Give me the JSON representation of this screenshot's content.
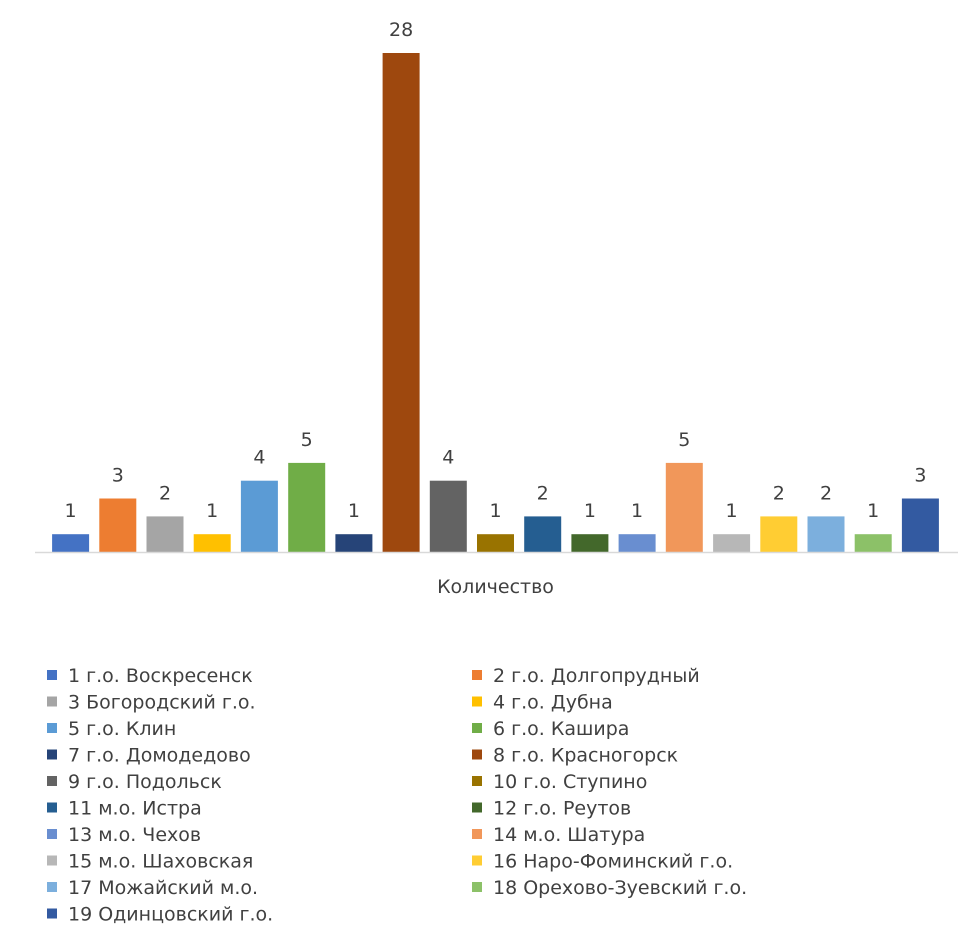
{
  "chart_data": {
    "type": "bar",
    "title": "",
    "xlabel": "",
    "ylabel": "",
    "categories": [
      "Количество"
    ],
    "ylim": [
      0,
      28
    ],
    "grid": false,
    "legend_position": "bottom",
    "data_labels": true,
    "series": [
      {
        "name": "1 г.о. Воскресенск",
        "values": [
          1
        ],
        "color": "#4472C4"
      },
      {
        "name": "2 г.о. Долгопрудный",
        "values": [
          3
        ],
        "color": "#ED7D31"
      },
      {
        "name": "3 Богородский г.о.",
        "values": [
          2
        ],
        "color": "#A5A5A5"
      },
      {
        "name": "4 г.о. Дубна",
        "values": [
          1
        ],
        "color": "#FFC000"
      },
      {
        "name": "5 г.о. Клин",
        "values": [
          4
        ],
        "color": "#5B9BD5"
      },
      {
        "name": "6 г.о. Кашира",
        "values": [
          5
        ],
        "color": "#70AD47"
      },
      {
        "name": "7 г.о. Домодедово",
        "values": [
          1
        ],
        "color": "#264478"
      },
      {
        "name": "8 г.о. Красногорск",
        "values": [
          28
        ],
        "color": "#9E480E"
      },
      {
        "name": "9 г.о. Подольск",
        "values": [
          4
        ],
        "color": "#636363"
      },
      {
        "name": "10 г.о. Ступино",
        "values": [
          1
        ],
        "color": "#997300"
      },
      {
        "name": "11 м.о. Истра",
        "values": [
          2
        ],
        "color": "#255E91"
      },
      {
        "name": "12 г.о. Реутов",
        "values": [
          1
        ],
        "color": "#43682B"
      },
      {
        "name": "13 м.о. Чехов",
        "values": [
          1
        ],
        "color": "#698ED0"
      },
      {
        "name": "14 м.о. Шатура",
        "values": [
          5
        ],
        "color": "#F1975A"
      },
      {
        "name": "15 м.о. Шаховская",
        "values": [
          1
        ],
        "color": "#B7B7B7"
      },
      {
        "name": "16 Наро-Фоминский г.о.",
        "values": [
          2
        ],
        "color": "#FFCD33"
      },
      {
        "name": "17 Можайский м.о.",
        "values": [
          2
        ],
        "color": "#7CAFDD"
      },
      {
        "name": "18 Орехово-Зуевский г.о.",
        "values": [
          1
        ],
        "color": "#8CC168"
      },
      {
        "name": "19 Одинцовский г.о.",
        "values": [
          3
        ],
        "color": "#335AA1"
      }
    ]
  }
}
